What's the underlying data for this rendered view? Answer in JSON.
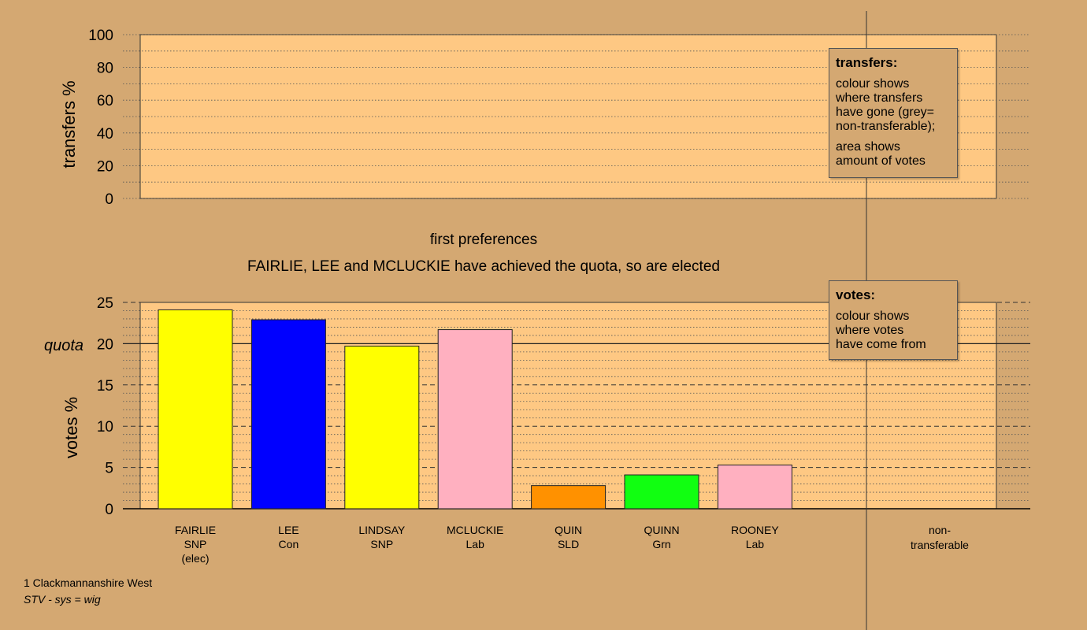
{
  "colors": {
    "background": "#d4a872",
    "plot_background": "#fec883"
  },
  "transfers_legend": {
    "title": "transfers:",
    "lines1": [
      "colour shows",
      "where transfers",
      "have gone (grey=",
      "non-transferable);"
    ],
    "lines2": [
      "area shows",
      "amount of votes"
    ]
  },
  "votes_legend": {
    "title": "votes:",
    "lines": [
      "colour shows",
      "where votes",
      "have come from"
    ]
  },
  "headings": {
    "stage": "first preferences",
    "elected": "FAIRLIE, LEE and MCLUCKIE have achieved the quota, so are elected"
  },
  "footer": {
    "ward": "1 Clackmannanshire West",
    "system": "STV - sys = wig"
  },
  "chart_data": [
    {
      "type": "bar",
      "title": "",
      "ylabel": "transfers %",
      "ylim": [
        0,
        100
      ],
      "yticks": [
        0,
        20,
        40,
        60,
        80,
        100
      ],
      "categories": [],
      "values": []
    },
    {
      "type": "bar",
      "ylabel": "votes %",
      "ylim": [
        0,
        25
      ],
      "yticks": [
        0,
        5,
        10,
        15,
        20,
        25
      ],
      "quota": 20,
      "quota_label": "quota",
      "categories": [
        [
          "FAIRLIE",
          "SNP",
          "(elec)"
        ],
        [
          "LEE",
          "Con"
        ],
        [
          "LINDSAY",
          "SNP"
        ],
        [
          "MCLUCKIE",
          "Lab"
        ],
        [
          "QUIN",
          "SLD"
        ],
        [
          "QUINN",
          "Grn"
        ],
        [
          "ROONEY",
          "Lab"
        ]
      ],
      "values": [
        24.1,
        22.9,
        19.7,
        21.7,
        2.8,
        4.1,
        5.3
      ],
      "bar_colors": [
        "#ffff00",
        "#0000ff",
        "#ffff00",
        "#ffb0c0",
        "#ff9100",
        "#11ff11",
        "#ffb0c0"
      ],
      "nontransferable_label": [
        "non-",
        "transferable"
      ]
    }
  ]
}
